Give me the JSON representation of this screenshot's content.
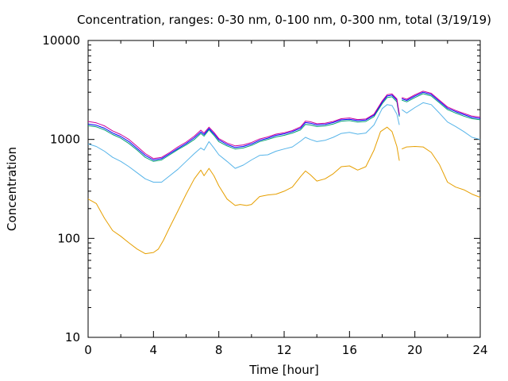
{
  "chart_data": {
    "type": "line",
    "title": "Concentration, ranges: 0-30 nm, 0-100 nm, 0-300 nm, total (3/19/19)",
    "xlabel": "Time [hour]",
    "ylabel": "Concentration",
    "xlim": [
      0,
      24
    ],
    "ylim": [
      10,
      10000
    ],
    "yscale": "log",
    "grid": false,
    "legend": "none",
    "x_ticks": [
      {
        "value": 0,
        "label": "0"
      },
      {
        "value": 4,
        "label": "4"
      },
      {
        "value": 8,
        "label": "8"
      },
      {
        "value": 12,
        "label": "12"
      },
      {
        "value": 16,
        "label": "16"
      },
      {
        "value": 20,
        "label": "20"
      },
      {
        "value": 24,
        "label": "24"
      }
    ],
    "y_ticks": [
      {
        "value": 10,
        "label": "10"
      },
      {
        "value": 100,
        "label": "100"
      },
      {
        "value": 1000,
        "label": "1000"
      },
      {
        "value": 10000,
        "label": "10000"
      }
    ],
    "series": [
      {
        "color": "#e69f00",
        "segments": [
          {
            "x": [
              0,
              0.5,
              1,
              1.5,
              2,
              2.5,
              3,
              3.5,
              4,
              4.3,
              4.6,
              5,
              5.5,
              6,
              6.5,
              6.9,
              7.1,
              7.4,
              7.7,
              8,
              8.5,
              9,
              9.3,
              9.7,
              10,
              10.5,
              11,
              11.5,
              12,
              12.5,
              13,
              13.3,
              13.6,
              14,
              14.5,
              15,
              15.5,
              16,
              16.5,
              17,
              17.5,
              17.9,
              18.3,
              18.6,
              18.9,
              19.05
            ],
            "y": [
              250,
              225,
              160,
              120,
              105,
              90,
              78,
              70,
              72,
              78,
              95,
              130,
              190,
              280,
              400,
              490,
              430,
              510,
              430,
              340,
              250,
              215,
              220,
              215,
              220,
              265,
              275,
              280,
              300,
              330,
              420,
              480,
              440,
              380,
              400,
              450,
              530,
              540,
              490,
              530,
              780,
              1200,
              1330,
              1200,
              850,
              610
            ]
          },
          {
            "x": [
              19.2,
              19.5,
              20,
              20.5,
              21,
              21.5,
              22,
              22.5,
              23,
              23.5,
              24
            ],
            "y": [
              800,
              840,
              850,
              840,
              740,
              560,
              370,
              330,
              310,
              280,
              260
            ]
          }
        ]
      },
      {
        "color": "#56b4e9",
        "segments": [
          {
            "x": [
              0,
              0.5,
              1,
              1.5,
              2,
              2.5,
              3,
              3.5,
              4,
              4.5,
              5,
              5.5,
              6,
              6.5,
              6.9,
              7.1,
              7.4,
              7.7,
              8,
              8.5,
              9,
              9.5,
              10,
              10.5,
              11,
              11.5,
              12,
              12.5,
              13,
              13.3,
              13.6,
              14,
              14.5,
              15,
              15.5,
              16,
              16.5,
              17,
              17.5,
              18,
              18.3,
              18.6,
              18.9,
              19.05
            ],
            "y": [
              900,
              850,
              760,
              660,
              600,
              530,
              460,
              400,
              370,
              370,
              430,
              500,
              600,
              720,
              820,
              780,
              950,
              820,
              700,
              600,
              510,
              550,
              620,
              690,
              700,
              760,
              800,
              840,
              960,
              1050,
              1000,
              950,
              980,
              1050,
              1150,
              1180,
              1130,
              1160,
              1400,
              2050,
              2250,
              2200,
              1800,
              1400
            ]
          },
          {
            "x": [
              19.2,
              19.5,
              20,
              20.5,
              21,
              21.5,
              22,
              22.5,
              23,
              23.5,
              24
            ],
            "y": [
              2000,
              1850,
              2100,
              2350,
              2250,
              1850,
              1500,
              1350,
              1200,
              1050,
              1000
            ]
          }
        ]
      },
      {
        "color": "#009e73",
        "segments": [
          {
            "x": [
              0,
              0.5,
              1,
              1.5,
              2,
              2.5,
              3,
              3.5,
              4,
              4.5,
              5,
              5.5,
              6,
              6.5,
              6.9,
              7.1,
              7.4,
              7.7,
              8,
              8.5,
              9,
              9.5,
              10,
              10.5,
              11,
              11.5,
              12,
              12.5,
              13,
              13.3,
              13.6,
              14,
              14.5,
              15,
              15.5,
              16,
              16.5,
              17,
              17.5,
              18,
              18.3,
              18.6,
              18.9,
              19.05
            ],
            "y": [
              1380,
              1340,
              1250,
              1120,
              1030,
              910,
              780,
              660,
              600,
              620,
              700,
              790,
              880,
              1000,
              1150,
              1080,
              1250,
              1100,
              950,
              860,
              800,
              820,
              870,
              950,
              1000,
              1060,
              1100,
              1160,
              1250,
              1420,
              1400,
              1350,
              1370,
              1430,
              1530,
              1550,
              1500,
              1520,
              1700,
              2300,
              2650,
              2700,
              2400,
              1700
            ]
          },
          {
            "x": [
              19.2,
              19.5,
              20,
              20.5,
              21,
              21.5,
              22,
              22.5,
              23,
              23.5,
              24
            ],
            "y": [
              2500,
              2400,
              2650,
              2900,
              2750,
              2350,
              2000,
              1850,
              1720,
              1620,
              1580
            ]
          }
        ]
      },
      {
        "color": "#0000ff",
        "segments": [
          {
            "x": [
              0,
              0.5,
              1,
              1.5,
              2,
              2.5,
              3,
              3.5,
              4,
              4.5,
              5,
              5.5,
              6,
              6.5,
              6.9,
              7.1,
              7.4,
              7.7,
              8,
              8.5,
              9,
              9.5,
              10,
              10.5,
              11,
              11.5,
              12,
              12.5,
              13,
              13.3,
              13.6,
              14,
              14.5,
              15,
              15.5,
              16,
              16.5,
              17,
              17.5,
              18,
              18.3,
              18.6,
              18.9,
              19.05
            ],
            "y": [
              1430,
              1390,
              1300,
              1160,
              1070,
              950,
              810,
              690,
              620,
              640,
              720,
              810,
              910,
              1040,
              1190,
              1120,
              1290,
              1140,
              990,
              890,
              830,
              850,
              900,
              980,
              1030,
              1100,
              1140,
              1200,
              1300,
              1480,
              1460,
              1400,
              1420,
              1480,
              1580,
              1600,
              1550,
              1570,
              1760,
              2380,
              2750,
              2800,
              2500,
              1750
            ]
          },
          {
            "x": [
              19.2,
              19.5,
              20,
              20.5,
              21,
              21.5,
              22,
              22.5,
              23,
              23.5,
              24
            ],
            "y": [
              2580,
              2480,
              2740,
              3000,
              2850,
              2430,
              2070,
              1910,
              1780,
              1670,
              1630
            ]
          }
        ]
      },
      {
        "color": "#cc0099",
        "segments": [
          {
            "x": [
              0,
              0.5,
              1,
              1.5,
              2,
              2.5,
              3,
              3.5,
              4,
              4.5,
              5,
              5.5,
              6,
              6.5,
              6.9,
              7.1,
              7.4,
              7.7,
              8,
              8.5,
              9,
              9.5,
              10,
              10.5,
              11,
              11.5,
              12,
              12.5,
              13,
              13.3,
              13.6,
              14,
              14.5,
              15,
              15.5,
              16,
              16.5,
              17,
              17.5,
              18,
              18.3,
              18.6,
              18.9,
              19.05
            ],
            "y": [
              1520,
              1470,
              1370,
              1220,
              1120,
              1000,
              850,
              720,
              640,
              660,
              740,
              840,
              940,
              1080,
              1240,
              1160,
              1330,
              1180,
              1020,
              920,
              860,
              880,
              930,
              1010,
              1060,
              1130,
              1170,
              1230,
              1340,
              1530,
              1510,
              1440,
              1460,
              1520,
              1620,
              1650,
              1590,
              1610,
              1800,
              2450,
              2830,
              2880,
              2570,
              1800
            ]
          },
          {
            "x": [
              19.2,
              19.5,
              20,
              20.5,
              21,
              21.5,
              22,
              22.5,
              23,
              23.5,
              24
            ],
            "y": [
              2650,
              2550,
              2820,
              3080,
              2930,
              2500,
              2130,
              1960,
              1830,
              1720,
              1680
            ]
          }
        ]
      }
    ]
  }
}
